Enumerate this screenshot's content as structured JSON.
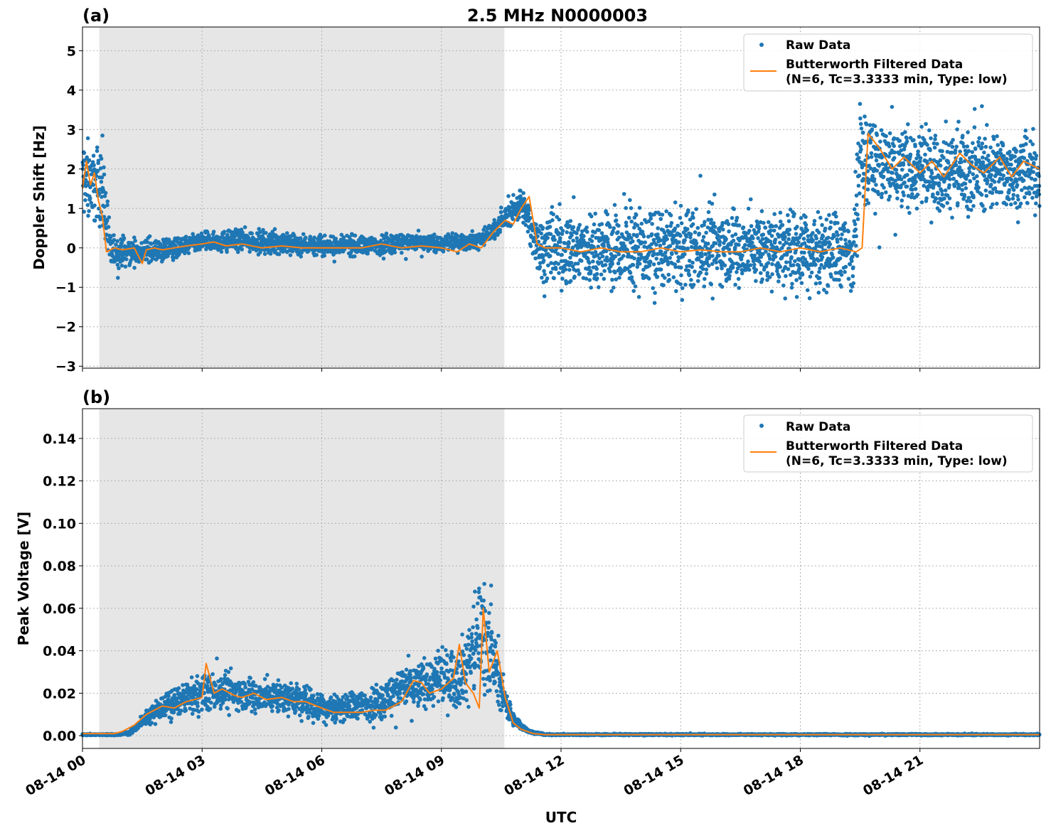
{
  "figure": {
    "title": "2.5 MHz N0000003",
    "xlabel": "UTC",
    "xticks": [
      "08-14 00",
      "08-14 03",
      "08-14 06",
      "08-14 09",
      "08-14 12",
      "08-14 15",
      "08-14 18",
      "08-14 21"
    ]
  },
  "legend": {
    "raw_label": "Raw Data",
    "filtered_label_line1": "Butterworth Filtered Data",
    "filtered_label_line2": "(N=6, Tc=3.3333 min, Type: low)",
    "placement": "top-right"
  },
  "colors": {
    "raw": "#1f77b4",
    "filtered": "#ff7f0e",
    "shade": "#e6e6e6"
  },
  "chart_data": [
    {
      "type": "scatter",
      "panel_label": "(a)",
      "ylabel": "Doppler Shift [Hz]",
      "xlim_hours": [
        0,
        24
      ],
      "ylim": [
        -3.05,
        5.6
      ],
      "yticks": [
        5,
        4,
        3,
        2,
        1,
        0,
        -1,
        -2,
        -3
      ],
      "ytick_labels": [
        "5",
        "4",
        "3",
        "2",
        "1",
        "0",
        "−1",
        "−2",
        "−3"
      ],
      "grid": true,
      "shaded_span_hours": [
        0.42,
        10.58
      ],
      "series": [
        {
          "name": "Raw Data",
          "approx_band_hours": [
            0,
            0.5,
            0.7,
            1,
            2,
            3,
            4,
            5,
            6,
            7,
            8,
            9,
            10,
            10.5,
            11,
            11.3,
            11.5,
            12,
            14,
            16,
            18,
            19.3,
            19.5,
            20,
            21,
            22,
            23,
            24
          ],
          "approx_band_low": [
            0.3,
            0.2,
            -0.8,
            -0.6,
            -0.5,
            -0.2,
            -0.2,
            -0.3,
            -0.3,
            -0.3,
            -0.2,
            -0.2,
            -0.1,
            0.3,
            0.6,
            -0.5,
            -1.3,
            -1.4,
            -1.5,
            -1.4,
            -1.4,
            -1.6,
            0.8,
            0.4,
            0.5,
            0.5,
            0.6,
            0.5
          ],
          "approx_band_high": [
            3.2,
            3.0,
            0.5,
            0.4,
            0.3,
            0.5,
            0.6,
            0.5,
            0.4,
            0.4,
            0.5,
            0.4,
            0.5,
            1.0,
            1.7,
            1.2,
            1.3,
            1.4,
            1.4,
            1.4,
            1.4,
            1.3,
            4.2,
            3.8,
            3.4,
            3.5,
            3.3,
            3.3
          ]
        },
        {
          "name": "Butterworth Filtered Data",
          "x_hours": [
            0,
            0.1,
            0.2,
            0.3,
            0.4,
            0.5,
            0.6,
            0.8,
            1.0,
            1.3,
            1.5,
            1.6,
            1.8,
            2.0,
            2.3,
            2.6,
            3.0,
            3.3,
            3.6,
            4.0,
            4.5,
            5.0,
            5.5,
            6.0,
            6.5,
            7.0,
            7.5,
            8.0,
            8.5,
            9.0,
            9.4,
            9.7,
            10.0,
            10.3,
            10.6,
            10.8,
            11.0,
            11.2,
            11.4,
            11.6,
            12.0,
            12.5,
            13.0,
            13.5,
            14.0,
            14.5,
            15.0,
            15.5,
            16.0,
            16.5,
            17.0,
            17.5,
            18.0,
            18.5,
            19.0,
            19.4,
            19.55,
            19.7,
            20.0,
            20.3,
            20.6,
            21.0,
            21.3,
            21.6,
            22.0,
            22.3,
            22.6,
            23.0,
            23.3,
            23.6,
            24.0
          ],
          "y": [
            1.5,
            2.2,
            1.6,
            1.9,
            1.2,
            0.8,
            -0.1,
            0.0,
            -0.05,
            0.0,
            -0.4,
            -0.05,
            0.0,
            -0.05,
            0.0,
            0.05,
            0.1,
            0.15,
            0.05,
            0.1,
            0.0,
            0.05,
            0.0,
            0.0,
            0.0,
            0.0,
            0.1,
            0.0,
            0.05,
            0.0,
            -0.1,
            0.1,
            0.0,
            0.4,
            0.7,
            0.6,
            1.0,
            1.3,
            0.1,
            0.0,
            0.0,
            -0.1,
            0.0,
            -0.1,
            -0.1,
            0.0,
            -0.1,
            -0.05,
            -0.1,
            -0.1,
            0.0,
            -0.1,
            0.0,
            -0.1,
            0.0,
            -0.1,
            0.0,
            2.9,
            2.5,
            2.0,
            2.3,
            1.9,
            2.2,
            1.8,
            2.4,
            2.1,
            1.9,
            2.3,
            1.8,
            2.2,
            2.0
          ]
        }
      ]
    },
    {
      "type": "scatter",
      "panel_label": "(b)",
      "ylabel": "Peak Voltage [V]",
      "xlim_hours": [
        0,
        24
      ],
      "ylim": [
        -0.006,
        0.154
      ],
      "yticks": [
        0.14,
        0.12,
        0.1,
        0.08,
        0.06,
        0.04,
        0.02,
        0.0
      ],
      "ytick_labels": [
        "0.14",
        "0.12",
        "0.10",
        "0.08",
        "0.06",
        "0.04",
        "0.02",
        "0.00"
      ],
      "grid": true,
      "shaded_span_hours": [
        0.42,
        10.58
      ],
      "series": [
        {
          "name": "Raw Data",
          "approx_band_hours": [
            0,
            0.9,
            1.2,
            1.5,
            2,
            2.5,
            3,
            3.5,
            4,
            4.5,
            5,
            5.5,
            6,
            6.5,
            7,
            7.5,
            8,
            8.5,
            9,
            9.5,
            9.8,
            10,
            10.2,
            10.5,
            10.8,
            11.2,
            11.6,
            12,
            24
          ],
          "approx_band_low": [
            0.0,
            0.0,
            0.0,
            0.003,
            0.005,
            0.007,
            0.008,
            0.009,
            0.008,
            0.007,
            0.007,
            0.006,
            0.004,
            0.004,
            0.004,
            0.005,
            0.008,
            0.008,
            0.008,
            0.007,
            0.01,
            0.015,
            0.01,
            0.008,
            0.003,
            0.001,
            0.0,
            0.0,
            0.0
          ],
          "approx_band_high": [
            0.001,
            0.001,
            0.003,
            0.01,
            0.022,
            0.027,
            0.032,
            0.033,
            0.031,
            0.03,
            0.03,
            0.028,
            0.023,
            0.022,
            0.025,
            0.028,
            0.038,
            0.04,
            0.045,
            0.05,
            0.07,
            0.09,
            0.075,
            0.035,
            0.012,
            0.003,
            0.001,
            0.001,
            0.001
          ]
        },
        {
          "name": "Butterworth Filtered Data",
          "x_hours": [
            0,
            0.8,
            1.0,
            1.3,
            1.6,
            2.0,
            2.3,
            2.6,
            3.0,
            3.1,
            3.3,
            3.5,
            3.8,
            4.0,
            4.3,
            4.6,
            5.0,
            5.3,
            5.6,
            6.0,
            6.3,
            6.6,
            7.0,
            7.3,
            7.6,
            8.0,
            8.3,
            8.5,
            8.7,
            9.0,
            9.3,
            9.45,
            9.6,
            9.8,
            9.95,
            10.05,
            10.2,
            10.4,
            10.6,
            10.8,
            11.0,
            11.3,
            11.6,
            12.0,
            24.0
          ],
          "y": [
            0.001,
            0.001,
            0.002,
            0.005,
            0.01,
            0.014,
            0.013,
            0.016,
            0.018,
            0.034,
            0.02,
            0.022,
            0.019,
            0.018,
            0.02,
            0.017,
            0.018,
            0.016,
            0.016,
            0.013,
            0.011,
            0.011,
            0.011,
            0.012,
            0.012,
            0.016,
            0.026,
            0.025,
            0.02,
            0.022,
            0.027,
            0.043,
            0.025,
            0.02,
            0.013,
            0.06,
            0.03,
            0.04,
            0.018,
            0.006,
            0.003,
            0.001,
            0.0005,
            0.0005,
            0.0005
          ]
        }
      ]
    }
  ]
}
